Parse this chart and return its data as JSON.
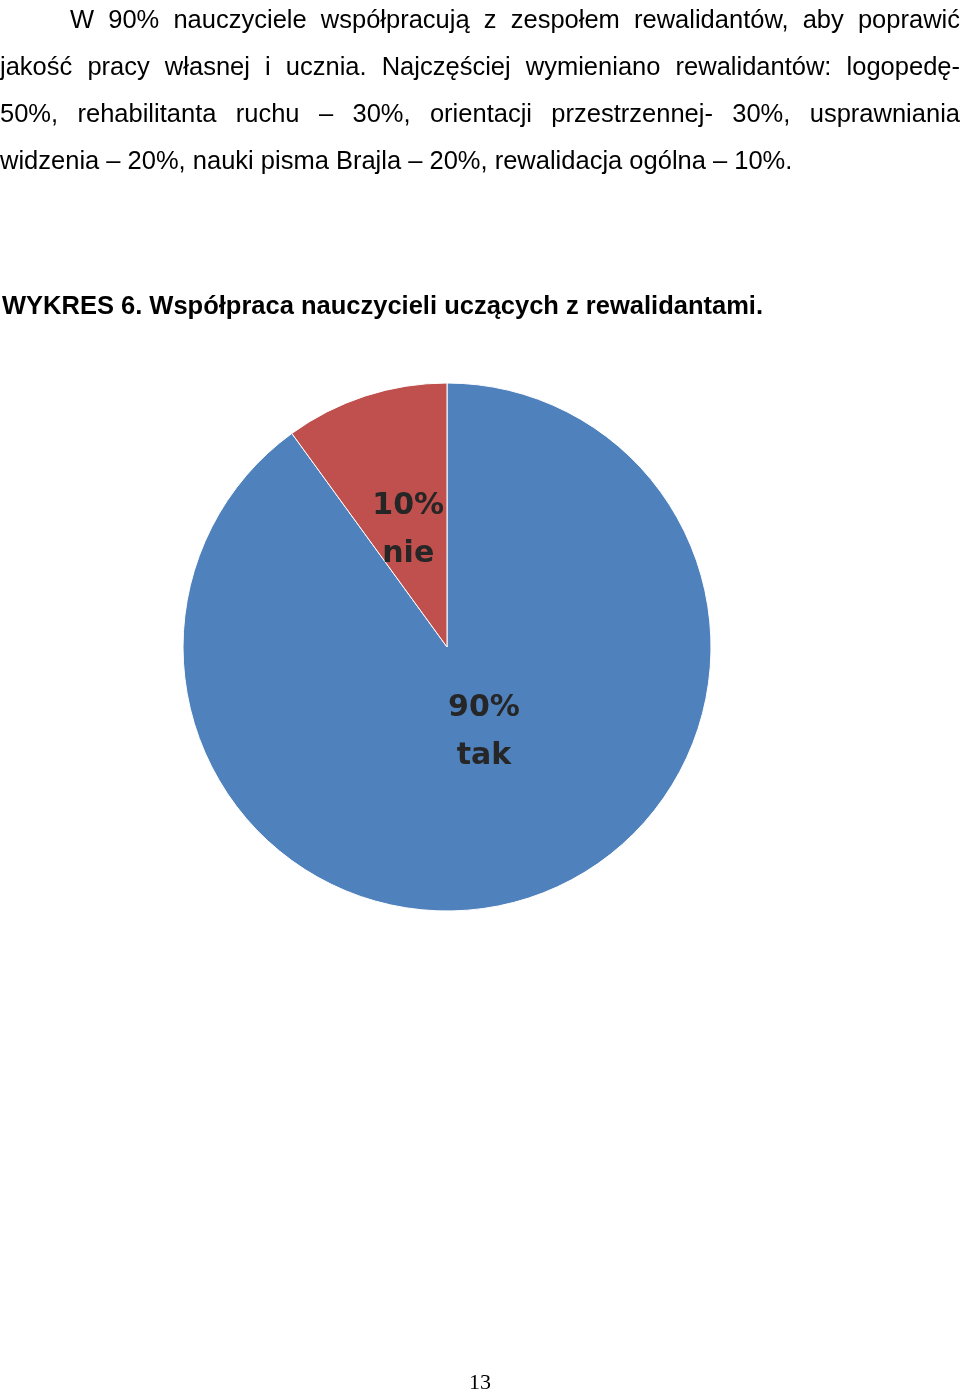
{
  "chart_data": {
    "type": "pie",
    "title": "WYKRES 6.  Współpraca nauczycieli uczących z rewalidantami.",
    "categories": [
      "tak",
      "nie"
    ],
    "values": [
      90,
      10
    ],
    "colors": [
      "#4f81bd",
      "#c0504d"
    ],
    "value_labels": [
      "90%",
      "10%"
    ],
    "annotations": [
      "W 90% nauczyciele współpracują z zespołem rewalidantów, aby poprawić jakość pracy własnej i ucznia. Najczęściej wymieniano rewalidantów: logopedę- 50%, rehabilitanta ruchu – 30%, orientacji przestrzennej- 30%, usprawniania widzenia – 20%, nauki pisma Brajla – 20%, rewalidacja ogólna – 10%.",
      "13"
    ]
  }
}
